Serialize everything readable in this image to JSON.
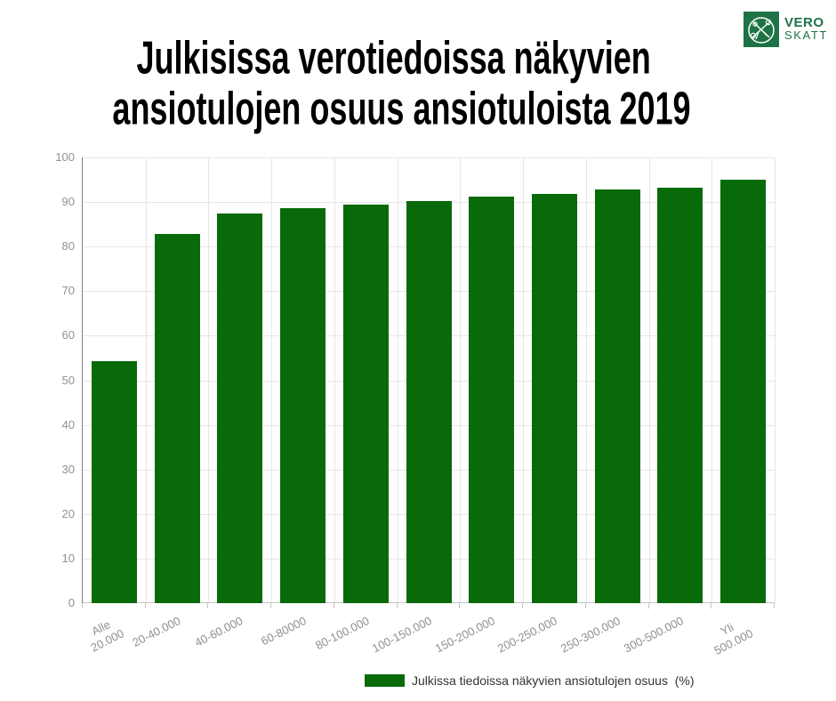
{
  "logo": {
    "vero": "VERO",
    "skatt": "SKATT",
    "green": "#1e7346"
  },
  "header": {
    "title_line1": "Julkisissa verotiedoissa näkyvien",
    "title_line2": "ansiotulojen osuus ansiotuloista 2019"
  },
  "chart_data": {
    "type": "bar",
    "title": "Julkisissa verotiedoissa näkyvien ansiotulojen osuus ansiotuloista 2019",
    "categories": [
      "Alle\n20.000",
      "20-40.000",
      "40-60.000",
      "60-80000",
      "80-100.000",
      "100-150.000",
      "150-200.000",
      "200-250.000",
      "250-300.000",
      "300-500.000",
      "Yli\n500.000"
    ],
    "values": [
      54.2,
      82.8,
      87.5,
      88.6,
      89.4,
      90.2,
      91.2,
      91.9,
      92.8,
      93.3,
      95.1
    ],
    "series_label": "Julkissa tiedoissa näkyvien ansiotulojen osuus  (%)",
    "xlabel": "",
    "ylabel": "",
    "ylim": [
      0,
      100
    ],
    "ytick_step": 10,
    "grid": true,
    "legend_position": "bottom",
    "bar_color": "#086a08",
    "axis_label_color": "#909090",
    "gridline_color": "#e6e6e6"
  }
}
